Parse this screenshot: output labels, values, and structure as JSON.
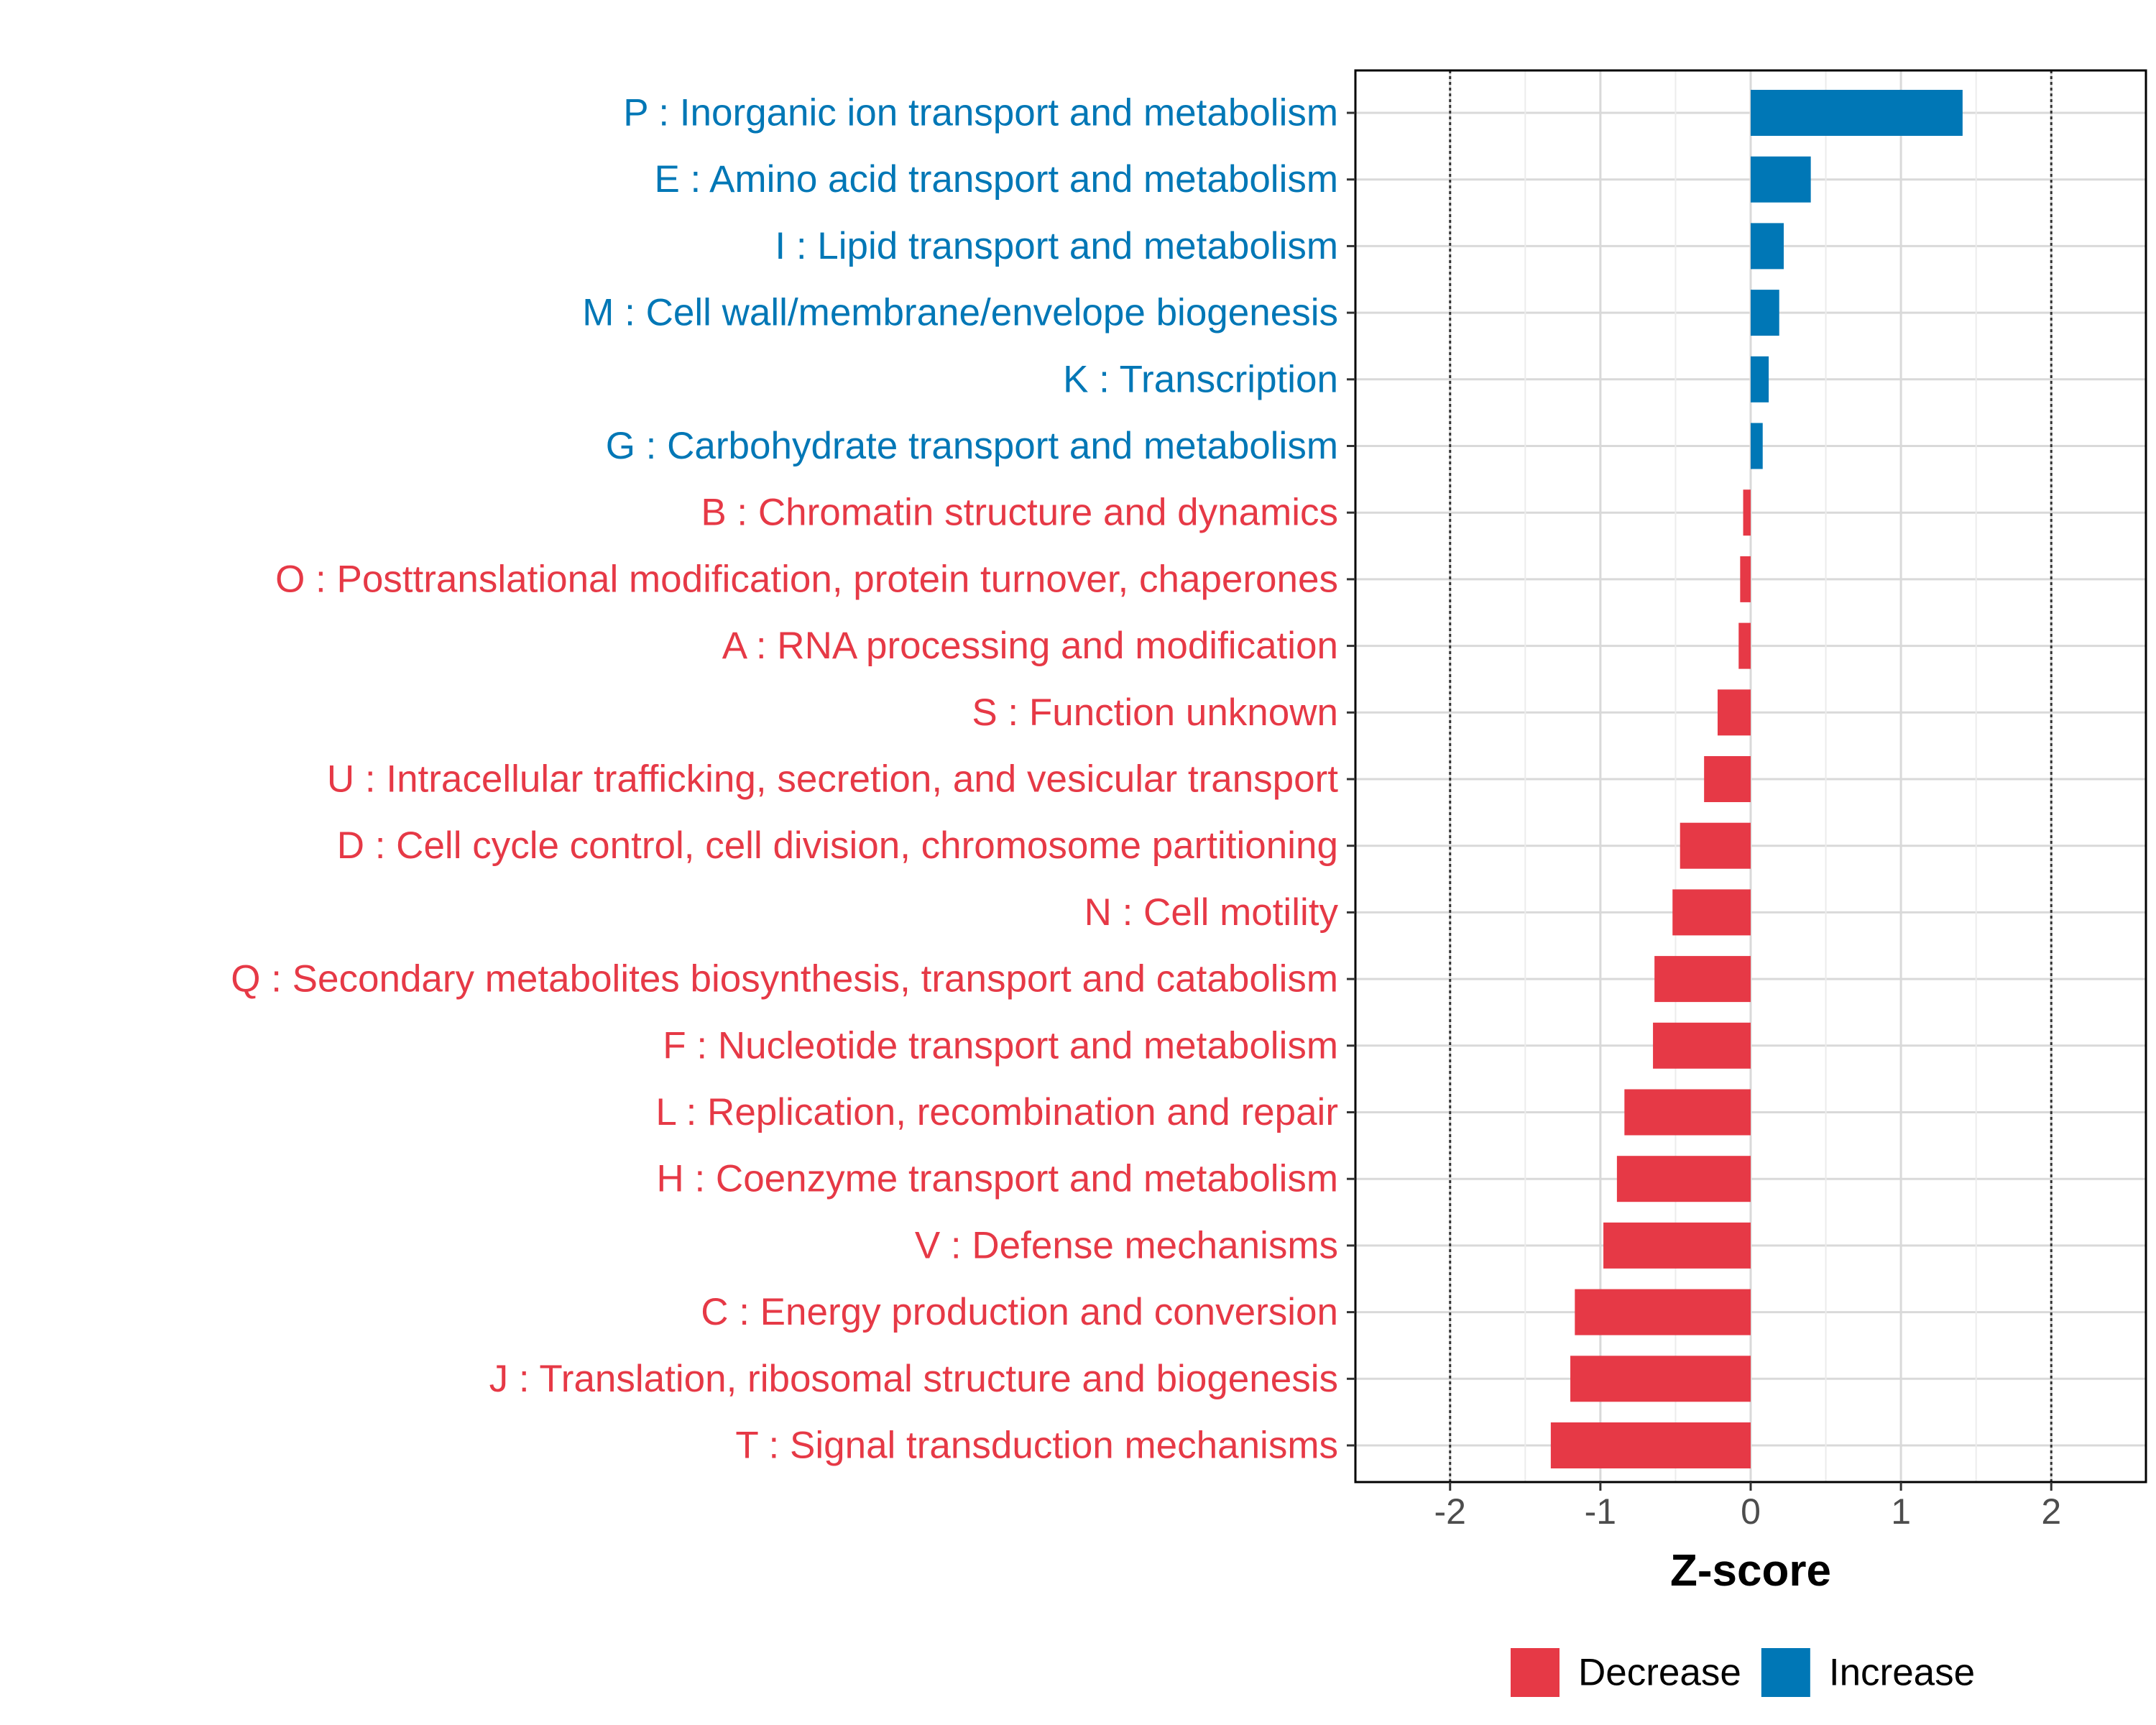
{
  "chart_data": {
    "type": "bar",
    "orientation": "horizontal",
    "title": "",
    "xlabel": "Z-score",
    "ylabel": "",
    "xlim": [
      -2.63,
      2.63
    ],
    "xticks": [
      -2,
      -1,
      0,
      1,
      2
    ],
    "xtick_labels": [
      "-2",
      "-1",
      "0",
      "1",
      "2"
    ],
    "reference_lines": [
      -2,
      2
    ],
    "grid": true,
    "legend": {
      "placement": "bottom",
      "items": [
        {
          "name": "Decrease",
          "color": "#E63946"
        },
        {
          "name": "Increase",
          "color": "#0077B6"
        }
      ]
    },
    "categories": [
      "P : Inorganic ion transport and metabolism",
      "E : Amino acid transport and metabolism",
      "I : Lipid transport and metabolism",
      "M : Cell wall/membrane/envelope biogenesis",
      "K : Transcription",
      "G : Carbohydrate transport and metabolism",
      "B : Chromatin structure and dynamics",
      "O : Posttranslational modification, protein turnover, chaperones",
      "A : RNA processing and modification",
      "S : Function unknown",
      "U : Intracellular trafficking, secretion, and vesicular transport",
      "D : Cell cycle control, cell division, chromosome partitioning",
      "N : Cell motility",
      "Q : Secondary metabolites biosynthesis, transport and catabolism",
      "F : Nucleotide transport and metabolism",
      "L : Replication, recombination and repair",
      "H : Coenzyme transport and metabolism",
      "V : Defense mechanisms",
      "C : Energy production and conversion",
      "J : Translation, ribosomal structure and biogenesis",
      "T : Signal transduction mechanisms"
    ],
    "values": [
      1.41,
      0.4,
      0.22,
      0.19,
      0.12,
      0.08,
      -0.05,
      -0.07,
      -0.08,
      -0.22,
      -0.31,
      -0.47,
      -0.52,
      -0.64,
      -0.65,
      -0.84,
      -0.89,
      -0.98,
      -1.17,
      -1.2,
      -1.33
    ],
    "groups": [
      "Increase",
      "Increase",
      "Increase",
      "Increase",
      "Increase",
      "Increase",
      "Decrease",
      "Decrease",
      "Decrease",
      "Decrease",
      "Decrease",
      "Decrease",
      "Decrease",
      "Decrease",
      "Decrease",
      "Decrease",
      "Decrease",
      "Decrease",
      "Decrease",
      "Decrease",
      "Decrease"
    ]
  }
}
